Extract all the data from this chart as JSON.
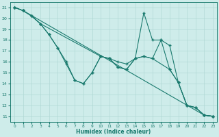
{
  "xlabel": "Humidex (Indice chaleur)",
  "bg_color": "#ceecea",
  "line_color": "#1a7a6e",
  "grid_color": "#b0d8d5",
  "xlim": [
    -0.5,
    23.5
  ],
  "ylim": [
    10.5,
    21.5
  ],
  "xticks": [
    0,
    1,
    2,
    3,
    4,
    5,
    6,
    7,
    8,
    9,
    10,
    11,
    12,
    13,
    14,
    15,
    16,
    17,
    18,
    19,
    20,
    21,
    22,
    23
  ],
  "yticks": [
    11,
    12,
    13,
    14,
    15,
    16,
    17,
    18,
    19,
    20,
    21
  ],
  "series": [
    {
      "x": [
        0,
        1,
        22,
        23
      ],
      "y": [
        21,
        20.7,
        11.1,
        11.0
      ]
    },
    {
      "x": [
        0,
        1,
        2,
        3,
        10,
        11,
        12,
        13,
        14,
        15,
        16,
        18,
        19,
        20,
        21,
        22,
        23
      ],
      "y": [
        21,
        20.7,
        20.2,
        19.5,
        16.5,
        16.3,
        16.0,
        15.8,
        16.3,
        16.5,
        16.3,
        15.3,
        14.1,
        12.0,
        11.8,
        11.1,
        11.0
      ]
    },
    {
      "x": [
        0,
        1,
        2,
        3,
        4,
        5,
        6,
        7,
        8,
        9,
        10,
        11,
        12,
        13,
        14,
        15,
        16,
        17,
        18,
        19,
        20,
        21,
        22,
        23
      ],
      "y": [
        21,
        20.7,
        20.2,
        19.5,
        18.5,
        17.3,
        16.0,
        14.3,
        14.0,
        15.0,
        16.5,
        16.3,
        15.5,
        15.3,
        16.3,
        20.5,
        18.0,
        18.0,
        15.3,
        14.1,
        12.0,
        11.8,
        11.1,
        11.0
      ]
    },
    {
      "x": [
        0,
        1,
        2,
        3,
        4,
        5,
        6,
        7,
        8,
        9,
        10,
        11,
        12,
        13,
        14,
        15,
        16,
        17,
        18,
        19,
        20,
        21,
        22,
        23
      ],
      "y": [
        21,
        20.7,
        20.2,
        19.5,
        18.5,
        17.3,
        15.8,
        14.3,
        14.0,
        15.0,
        16.5,
        16.3,
        15.5,
        15.3,
        16.3,
        16.5,
        16.3,
        18.0,
        17.5,
        14.1,
        12.0,
        11.8,
        11.1,
        11.0
      ]
    }
  ]
}
